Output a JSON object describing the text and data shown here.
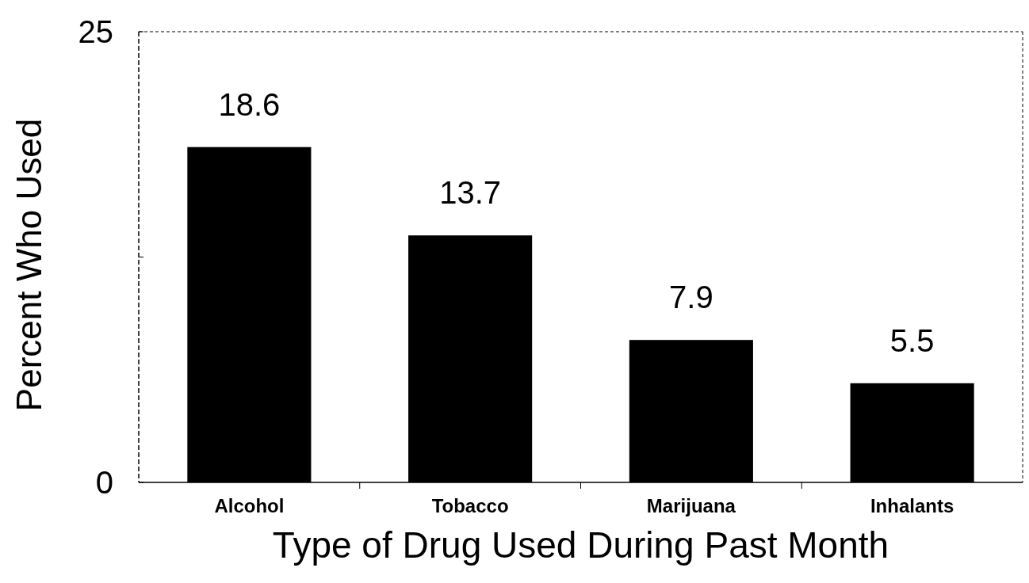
{
  "chart_data": {
    "type": "bar",
    "xlabel": "Type of Drug Used During Past Month",
    "ylabel": "Percent Who Used",
    "categories": [
      "Alcohol",
      "Tobacco",
      "Marijuana",
      "Inhalants"
    ],
    "values": [
      18.6,
      13.7,
      7.9,
      5.5
    ],
    "color": "#000000",
    "data_labels": true,
    "ylim": [
      0,
      25
    ],
    "yticks": [
      0,
      {
        "value": 12.5,
        "label": null
      },
      25
    ]
  }
}
